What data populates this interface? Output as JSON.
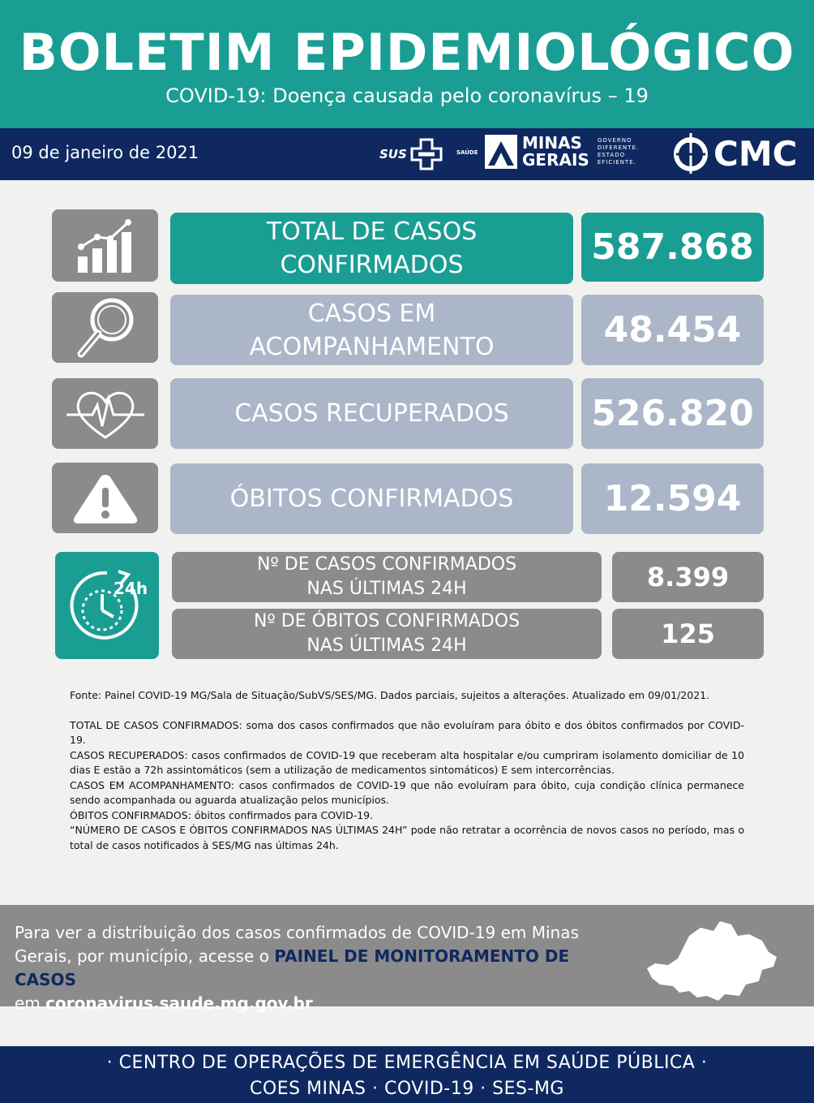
{
  "header": {
    "title": "BOLETIM EPIDEMIOLÓGICO",
    "subtitle": "COVID-19: Doença causada pelo coronavírus – 19"
  },
  "datebar": {
    "date": "09 de janeiro de 2021",
    "logos": {
      "sus": "SUS",
      "saude": "SAÚDE",
      "minas_line1": "MINAS",
      "minas_line2": "GERAIS",
      "gov_line1": "GOVERNO",
      "gov_line2": "DIFERENTE.",
      "gov_line3": "ESTADO",
      "gov_line4": "EFICIENTE.",
      "cmc": "CMC"
    }
  },
  "stats": {
    "total": {
      "label_line1": "TOTAL DE CASOS",
      "label_line2": "CONFIRMADOS",
      "value": "587.868",
      "icon": "chart-growth-icon"
    },
    "acompanhamento": {
      "label_line1": "CASOS EM",
      "label_line2": "ACOMPANHAMENTO",
      "value": "48.454",
      "icon": "magnifier-icon"
    },
    "recuperados": {
      "label": "CASOS RECUPERADOS",
      "value": "526.820",
      "icon": "heart-pulse-icon"
    },
    "obitos": {
      "label": "ÓBITOS CONFIRMADOS",
      "value": "12.594",
      "icon": "warning-icon"
    },
    "casos_24h": {
      "label_line1": "Nº DE CASOS  CONFIRMADOS",
      "label_line2": "NAS ÚLTIMAS 24H",
      "value": "8.399"
    },
    "obitos_24h": {
      "label_line1": "Nº DE ÓBITOS  CONFIRMADOS",
      "label_line2": "NAS ÚLTIMAS 24H",
      "value": "125"
    },
    "clock_icon_text": "24h"
  },
  "notes": {
    "fonte": "Fonte: Painel COVID-19 MG/Sala de Situação/SubVS/SES/MG. Dados parciais, sujeitos a alterações. Atualizado em 09/01/2021.",
    "total": "TOTAL DE  CASOS CONFIRMADOS: soma dos casos confirmados que não evoluíram para óbito e dos óbitos confirmados por COVID-19.",
    "recuperados": "CASOS RECUPERADOS: casos confirmados de COVID-19 que receberam alta hospitalar e/ou cumpriram isolamento domiciliar de 10 dias E estão a 72h assintomáticos (sem a utilização de medicamentos sintomáticos) E sem intercorrências.",
    "acompanhamento": "CASOS EM ACOMPANHAMENTO: casos confirmados de COVID-19 que não evoluíram para óbito, cuja condição clínica permanece sendo acompanhada ou aguarda atualização pelos municípios.",
    "obitos": "ÓBITOS CONFIRMADOS: óbitos confirmados para COVID-19.",
    "ultimas24h": "“NÚMERO DE CASOS E ÓBITOS CONFIRMADOS NAS ÚLTIMAS 24H” pode não retratar a ocorrência de novos casos no período, mas o total de casos notificados à SES/MG nas últimas 24h."
  },
  "panel": {
    "text1": "Para ver a distribuição dos casos confirmados de COVID-19 em Minas Gerais, por município, acesse o ",
    "link": "PAINEL DE MONITORAMENTO DE CASOS",
    "text2": "em ",
    "url": "coronavirus.saude.mg.gov.br"
  },
  "footer": {
    "line1": "· CENTRO DE OPERAÇÕES DE EMERGÊNCIA EM SAÚDE PÚBLICA ·",
    "line2": "COES MINAS · COVID-19 · SES-MG"
  },
  "colors": {
    "teal": "#1a9e93",
    "navy": "#0f2960",
    "light_blue_grey": "#abb6c8",
    "grey": "#8b8b8b",
    "background": "#f1f1ef"
  }
}
